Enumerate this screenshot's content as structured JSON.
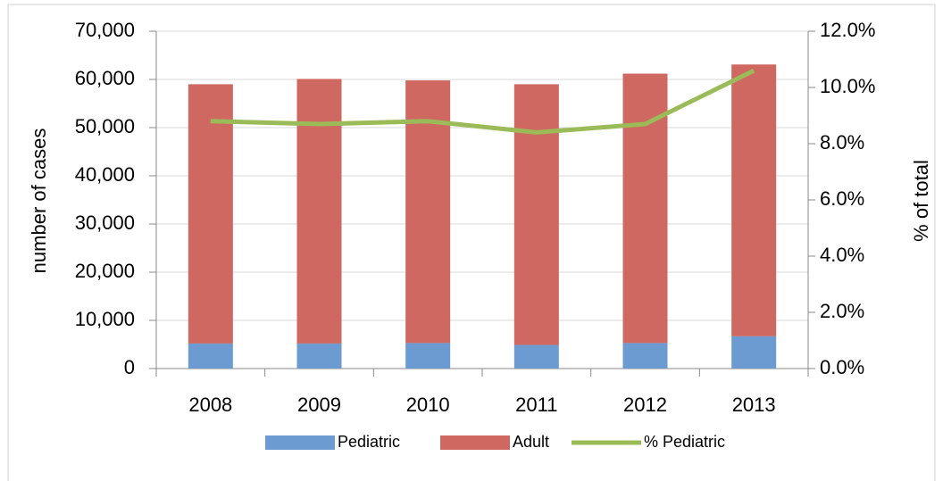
{
  "chart_data": {
    "type": "stacked_bar_line",
    "categories": [
      "2008",
      "2009",
      "2010",
      "2011",
      "2012",
      "2013"
    ],
    "series": [
      {
        "name": "Pediatric",
        "color": "#6b9bd1",
        "values": [
          5200,
          5200,
          5300,
          4900,
          5300,
          6700
        ]
      },
      {
        "name": "Adult",
        "color": "#cf6860",
        "values": [
          53800,
          54900,
          54500,
          54100,
          55900,
          56400
        ]
      },
      {
        "name": "% Pediatric",
        "color": "#9bbb59",
        "axis": "y2",
        "values": [
          8.8,
          8.7,
          8.8,
          8.4,
          8.7,
          10.6
        ]
      }
    ],
    "ylabel": "number of cases",
    "y2label": "% of total",
    "ylim": [
      0,
      70000
    ],
    "yticks": [
      0,
      {
        "value": 10000,
        "label": "10,000"
      },
      {
        "value": 20000,
        "label": "20,000"
      },
      {
        "value": 30000,
        "label": "30,000"
      },
      {
        "value": 40000,
        "label": "40,000"
      },
      {
        "value": 50000,
        "label": "50,000"
      },
      {
        "value": 60000,
        "label": "60,000"
      },
      {
        "value": 70000,
        "label": "70,000"
      }
    ],
    "y2lim": [
      0,
      12
    ],
    "y2ticks": [
      {
        "value": 0,
        "label": "0.0%"
      },
      {
        "value": 2,
        "label": "2.0%"
      },
      {
        "value": 4,
        "label": "4.0%"
      },
      {
        "value": 6,
        "label": "6.0%"
      },
      {
        "value": 8,
        "label": "8.0%"
      },
      {
        "value": 10,
        "label": "10.0%"
      },
      {
        "value": 12,
        "label": "12.0%"
      }
    ],
    "grid": true,
    "legend": "bottom"
  }
}
